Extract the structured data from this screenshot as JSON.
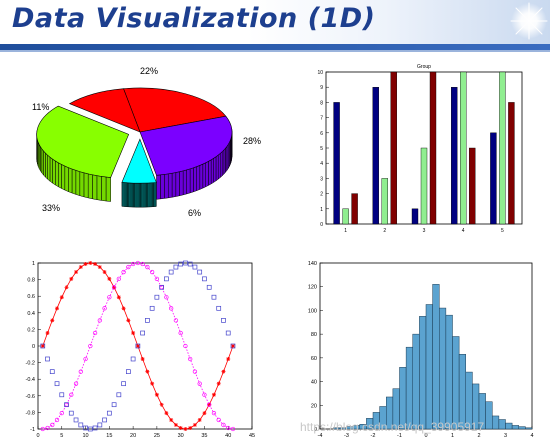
{
  "header": {
    "title": "Data Visualization (1D)"
  },
  "watermark": "https://blog.csdn.net/qq_39905917",
  "chart_data": [
    {
      "type": "pie",
      "variant": "3d",
      "slice_labels": [
        "22%",
        "28%",
        "6%",
        "33%",
        "11%"
      ],
      "values": [
        22,
        28,
        6,
        33,
        11
      ],
      "exploded": [
        false,
        false,
        true,
        true,
        false
      ],
      "colors": [
        "#ff0000",
        "#7b00ff",
        "#00ffff",
        "#88ff00",
        "#ff0000"
      ]
    },
    {
      "type": "bar",
      "title": "Group",
      "categories": [
        "1",
        "2",
        "3",
        "4",
        "5"
      ],
      "series": [
        {
          "values": [
            8,
            9,
            1,
            9,
            6
          ],
          "color": "#000080"
        },
        {
          "values": [
            1,
            3,
            5,
            10,
            10
          ],
          "color": "#90ee90"
        },
        {
          "values": [
            2,
            10,
            10,
            5,
            8
          ],
          "color": "#800000"
        }
      ],
      "ylim": [
        0,
        10
      ],
      "yticks": [
        "0",
        "1",
        "2",
        "3",
        "4",
        "5",
        "6",
        "7",
        "8",
        "9",
        "10"
      ],
      "grid": false
    },
    {
      "type": "line",
      "xlim": [
        0,
        45
      ],
      "ylim": [
        -1,
        1
      ],
      "xticks": [
        "0",
        "5",
        "10",
        "15",
        "20",
        "25",
        "30",
        "35",
        "40",
        "45"
      ],
      "yticks": [
        "-1",
        "-0.8",
        "-0.6",
        "-0.4",
        "-0.2",
        "0",
        "0.2",
        "0.4",
        "0.6",
        "0.8",
        "1"
      ],
      "series": [
        {
          "function": "sin",
          "x_start": 1,
          "x_end": 41,
          "period": 40,
          "amplitude": 1,
          "x_at_zero": 1,
          "color": "#ff0000",
          "marker": "*",
          "line": "solid"
        },
        {
          "function": "sin",
          "x_start": 1,
          "x_end": 41,
          "period": 40,
          "amplitude": 1,
          "x_at_zero": 11,
          "color": "#ff00ff",
          "marker": "o",
          "line": "dotted"
        },
        {
          "function": "sin",
          "x_start": 1,
          "x_end": 41,
          "period": 40,
          "amplitude": 1,
          "x_at_zero": 21,
          "color": "#4444cc",
          "marker": "s",
          "line": "none"
        }
      ],
      "grid": false
    },
    {
      "type": "bar",
      "variant": "histogram",
      "bin_width": 0.25,
      "x_start": -3.5,
      "values": [
        1,
        1,
        2,
        3,
        4,
        9,
        14,
        19,
        27,
        34,
        52,
        69,
        80,
        95,
        105,
        122,
        102,
        96,
        78,
        63,
        48,
        38,
        30,
        23,
        11,
        8,
        5,
        3,
        2,
        1
      ],
      "xlim": [
        -4,
        4
      ],
      "ylim": [
        0,
        140
      ],
      "xticks": [
        "-4",
        "-3",
        "-2",
        "-1",
        "0",
        "1",
        "2",
        "3",
        "4"
      ],
      "yticks": [
        "0",
        "20",
        "40",
        "60",
        "80",
        "100",
        "120",
        "140"
      ],
      "color": "#5ba3d0",
      "grid": false
    }
  ]
}
